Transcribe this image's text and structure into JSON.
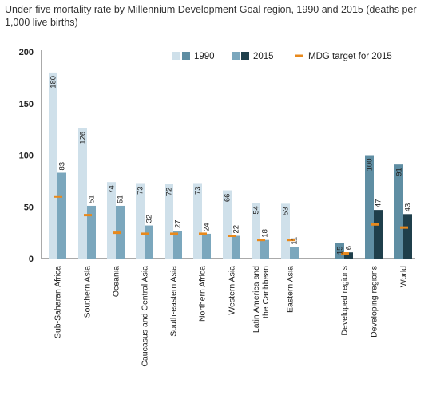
{
  "chart_data": {
    "type": "bar",
    "title": "Under-five mortality rate by Millennium Development Goal region, 1990 and 2015 (deaths per 1,000 live births)",
    "xlabel": "",
    "ylabel": "",
    "ylim": [
      0,
      200
    ],
    "yticks": [
      0,
      50,
      100,
      150,
      200
    ],
    "grid": false,
    "legend_position": "top-right",
    "categories": [
      "Sub-Saharan Africa",
      "Southern Asia",
      "Oceania",
      "Caucasus and Central Asia",
      "South-eastern Asia",
      "Northern Africa",
      "Western Asia",
      "Latin America and the Caribbean",
      "Eastern Asia",
      "Developed regions",
      "Developing regions",
      "World"
    ],
    "category_lines": [
      [
        "Sub-Saharan Africa"
      ],
      [
        "Southern Asia"
      ],
      [
        "Oceania"
      ],
      [
        "Caucasus and Central Asia"
      ],
      [
        "South-eastern Asia"
      ],
      [
        "Northern Africa"
      ],
      [
        "Western Asia"
      ],
      [
        "Latin America and",
        "the Caribbean"
      ],
      [
        "Eastern Asia"
      ],
      [
        "Developed regions"
      ],
      [
        "Developing regions"
      ],
      [
        "World"
      ]
    ],
    "series": [
      {
        "name": "1990",
        "values": [
          180,
          126,
          74,
          73,
          72,
          73,
          66,
          54,
          53,
          15,
          100,
          91
        ]
      },
      {
        "name": "2015",
        "values": [
          83,
          51,
          51,
          32,
          27,
          24,
          22,
          18,
          11,
          6,
          47,
          43
        ]
      },
      {
        "name": "MDG target for 2015",
        "values": [
          60,
          42,
          25,
          24,
          24,
          24,
          22,
          18,
          18,
          5,
          33,
          30
        ]
      }
    ],
    "data_labels": {
      "1990": [
        "180",
        "126",
        "74",
        "73",
        "72",
        "73",
        "66",
        "54",
        "53",
        "15",
        "100",
        "91"
      ],
      "2015": [
        "83",
        "51",
        "51",
        "32",
        "27",
        "24",
        "22",
        "18",
        "11",
        "6",
        "47",
        "43"
      ]
    },
    "colors": {
      "regions_1990": "#cfe0ea",
      "regions_2015": "#7ba7bd",
      "aggregates_1990": "#5f8ea3",
      "aggregates_2015": "#1f3f4b",
      "mdg_target": "#e8891c",
      "axis": "#555555"
    }
  }
}
